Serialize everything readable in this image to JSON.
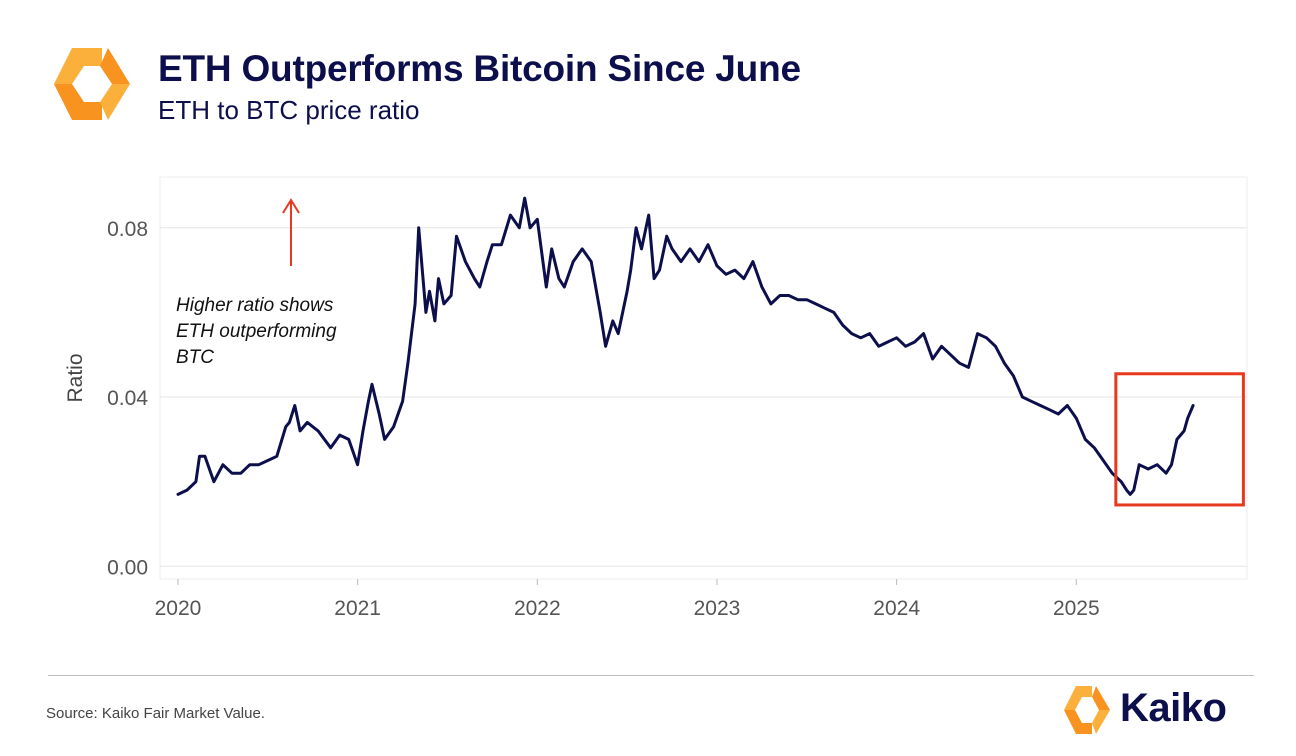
{
  "header": {
    "title": "ETH Outperforms Bitcoin Since June",
    "subtitle": "ETH to BTC price ratio"
  },
  "footer": {
    "source": "Source: Kaiko Fair Market Value.",
    "brand": "Kaiko"
  },
  "annotation": {
    "lines": [
      "Higher ratio shows",
      "ETH outperforming",
      "BTC"
    ]
  },
  "colors": {
    "line": "#0d0f4d",
    "highlight": "#e8391e",
    "arrow": "#e8391e",
    "grid": "#e6e6e6",
    "logo_orange": "#f7931e",
    "logo_light": "#fbb03b"
  },
  "chart_data": {
    "type": "line",
    "title": "ETH Outperforms Bitcoin Since June",
    "subtitle": "ETH to BTC price ratio",
    "xlabel": "",
    "ylabel": "Ratio",
    "xlim": [
      2019.9,
      2025.95
    ],
    "ylim": [
      -0.003,
      0.092
    ],
    "yticks": [
      0.0,
      0.04,
      0.08
    ],
    "ytick_labels": [
      "0.00",
      "0.04",
      "0.08"
    ],
    "xticks": [
      2020,
      2021,
      2022,
      2023,
      2024,
      2025
    ],
    "xtick_labels": [
      "2020",
      "2021",
      "2022",
      "2023",
      "2024",
      "2025"
    ],
    "grid": "horizontal",
    "series": [
      {
        "x": [
          2020.0,
          2020.05,
          2020.1,
          2020.12,
          2020.15,
          2020.2,
          2020.25,
          2020.3,
          2020.35,
          2020.4,
          2020.45,
          2020.5,
          2020.55,
          2020.6,
          2020.62,
          2020.65,
          2020.68,
          2020.72,
          2020.78,
          2020.85,
          2020.9,
          2020.95,
          2021.0,
          2021.03,
          2021.06,
          2021.08,
          2021.12,
          2021.15,
          2021.2,
          2021.25,
          2021.28,
          2021.32,
          2021.34,
          2021.36,
          2021.38,
          2021.4,
          2021.43,
          2021.45,
          2021.48,
          2021.52,
          2021.55,
          2021.6,
          2021.65,
          2021.68,
          2021.72,
          2021.75,
          2021.8,
          2021.85,
          2021.9,
          2021.93,
          2021.96,
          2022.0,
          2022.05,
          2022.08,
          2022.12,
          2022.15,
          2022.2,
          2022.25,
          2022.3,
          2022.35,
          2022.38,
          2022.42,
          2022.45,
          2022.5,
          2022.52,
          2022.55,
          2022.58,
          2022.62,
          2022.65,
          2022.68,
          2022.72,
          2022.75,
          2022.8,
          2022.85,
          2022.9,
          2022.95,
          2023.0,
          2023.05,
          2023.1,
          2023.15,
          2023.2,
          2023.25,
          2023.3,
          2023.35,
          2023.4,
          2023.45,
          2023.5,
          2023.55,
          2023.6,
          2023.65,
          2023.7,
          2023.75,
          2023.8,
          2023.85,
          2023.9,
          2023.95,
          2024.0,
          2024.05,
          2024.1,
          2024.15,
          2024.2,
          2024.25,
          2024.3,
          2024.35,
          2024.4,
          2024.45,
          2024.5,
          2024.55,
          2024.6,
          2024.65,
          2024.7,
          2024.75,
          2024.8,
          2024.85,
          2024.9,
          2024.95,
          2025.0,
          2025.05,
          2025.1,
          2025.15,
          2025.2,
          2025.25,
          2025.28,
          2025.3,
          2025.32,
          2025.35,
          2025.4,
          2025.45,
          2025.5,
          2025.53,
          2025.56,
          2025.58,
          2025.6,
          2025.62,
          2025.65
        ],
        "y": [
          0.017,
          0.018,
          0.02,
          0.026,
          0.026,
          0.02,
          0.024,
          0.022,
          0.022,
          0.024,
          0.024,
          0.025,
          0.026,
          0.033,
          0.034,
          0.038,
          0.032,
          0.034,
          0.032,
          0.028,
          0.031,
          0.03,
          0.024,
          0.032,
          0.039,
          0.043,
          0.036,
          0.03,
          0.033,
          0.039,
          0.048,
          0.062,
          0.08,
          0.07,
          0.06,
          0.065,
          0.058,
          0.068,
          0.062,
          0.064,
          0.078,
          0.072,
          0.068,
          0.066,
          0.072,
          0.076,
          0.076,
          0.083,
          0.08,
          0.087,
          0.08,
          0.082,
          0.066,
          0.075,
          0.068,
          0.066,
          0.072,
          0.075,
          0.072,
          0.06,
          0.052,
          0.058,
          0.055,
          0.065,
          0.07,
          0.08,
          0.075,
          0.083,
          0.068,
          0.07,
          0.078,
          0.075,
          0.072,
          0.075,
          0.072,
          0.076,
          0.071,
          0.069,
          0.07,
          0.068,
          0.072,
          0.066,
          0.062,
          0.064,
          0.064,
          0.063,
          0.063,
          0.062,
          0.061,
          0.06,
          0.057,
          0.055,
          0.054,
          0.055,
          0.052,
          0.053,
          0.054,
          0.052,
          0.053,
          0.055,
          0.049,
          0.052,
          0.05,
          0.048,
          0.047,
          0.055,
          0.054,
          0.052,
          0.048,
          0.045,
          0.04,
          0.039,
          0.038,
          0.037,
          0.036,
          0.038,
          0.035,
          0.03,
          0.028,
          0.025,
          0.022,
          0.02,
          0.018,
          0.017,
          0.018,
          0.024,
          0.023,
          0.024,
          0.022,
          0.024,
          0.03,
          0.031,
          0.032,
          0.035,
          0.038
        ]
      }
    ],
    "highlight_box": {
      "x": [
        2025.22,
        2025.93
      ],
      "y": [
        0.0145,
        0.0455
      ]
    },
    "annotation_text": "Higher ratio shows ETH outperforming BTC"
  }
}
